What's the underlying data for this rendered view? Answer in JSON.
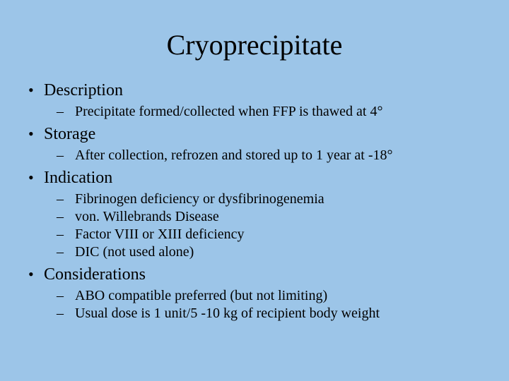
{
  "title": "Cryoprecipitate",
  "sections": [
    {
      "heading": "Description",
      "items": [
        "Precipitate formed/collected when FFP is thawed at 4°"
      ]
    },
    {
      "heading": "Storage",
      "items": [
        "After collection, refrozen and stored up to 1 year at -18°"
      ]
    },
    {
      "heading": "Indication",
      "items": [
        "Fibrinogen deficiency or dysfibrinogenemia",
        "von. Willebrands Disease",
        "Factor VIII or XIII deficiency",
        "DIC (not used alone)"
      ]
    },
    {
      "heading": "Considerations",
      "items": [
        "ABO compatible preferred (but not limiting)",
        "Usual dose is 1 unit/5 -10 kg of recipient body weight"
      ]
    }
  ],
  "colors": {
    "background": "#9cc5e8",
    "text": "#000000"
  },
  "typography": {
    "font_family": "Times New Roman",
    "title_fontsize": 40,
    "level1_fontsize": 24,
    "level2_fontsize": 20
  }
}
